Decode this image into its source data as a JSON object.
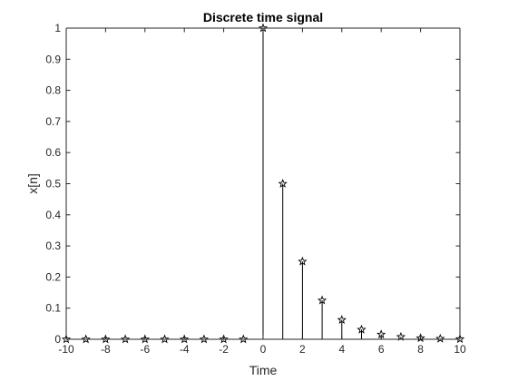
{
  "chart_data": {
    "type": "stem",
    "title": "Discrete time signal",
    "xlabel": "Time",
    "ylabel": "x[n]",
    "xlim": [
      -10,
      10
    ],
    "ylim": [
      0,
      1
    ],
    "xticks": [
      -10,
      -8,
      -6,
      -4,
      -2,
      0,
      2,
      4,
      6,
      8,
      10
    ],
    "xtick_labels": [
      "-10",
      "-8",
      "-6",
      "-4",
      "-2",
      "0",
      "2",
      "4",
      "6",
      "8",
      "10"
    ],
    "yticks": [
      0,
      0.1,
      0.2,
      0.3,
      0.4,
      0.5,
      0.6,
      0.7,
      0.8,
      0.9,
      1
    ],
    "ytick_labels": [
      "0",
      "0.1",
      "0.2",
      "0.3",
      "0.4",
      "0.5",
      "0.6",
      "0.7",
      "0.8",
      "0.9",
      "1"
    ],
    "marker": "pentagram",
    "grid": false,
    "series": [
      {
        "name": "x[n]",
        "x": [
          -10,
          -9,
          -8,
          -7,
          -6,
          -5,
          -4,
          -3,
          -2,
          -1,
          0,
          1,
          2,
          3,
          4,
          5,
          6,
          7,
          8,
          9,
          10
        ],
        "values": [
          0,
          0,
          0,
          0,
          0,
          0,
          0,
          0,
          0,
          0,
          1,
          0.5,
          0.25,
          0.125,
          0.0625,
          0.03125,
          0.015625,
          0.0078125,
          0.00390625,
          0.001953125,
          0.0009765625
        ]
      }
    ],
    "colors": {
      "stem": "#000000",
      "axes": "#262626",
      "background": "#ffffff"
    }
  }
}
